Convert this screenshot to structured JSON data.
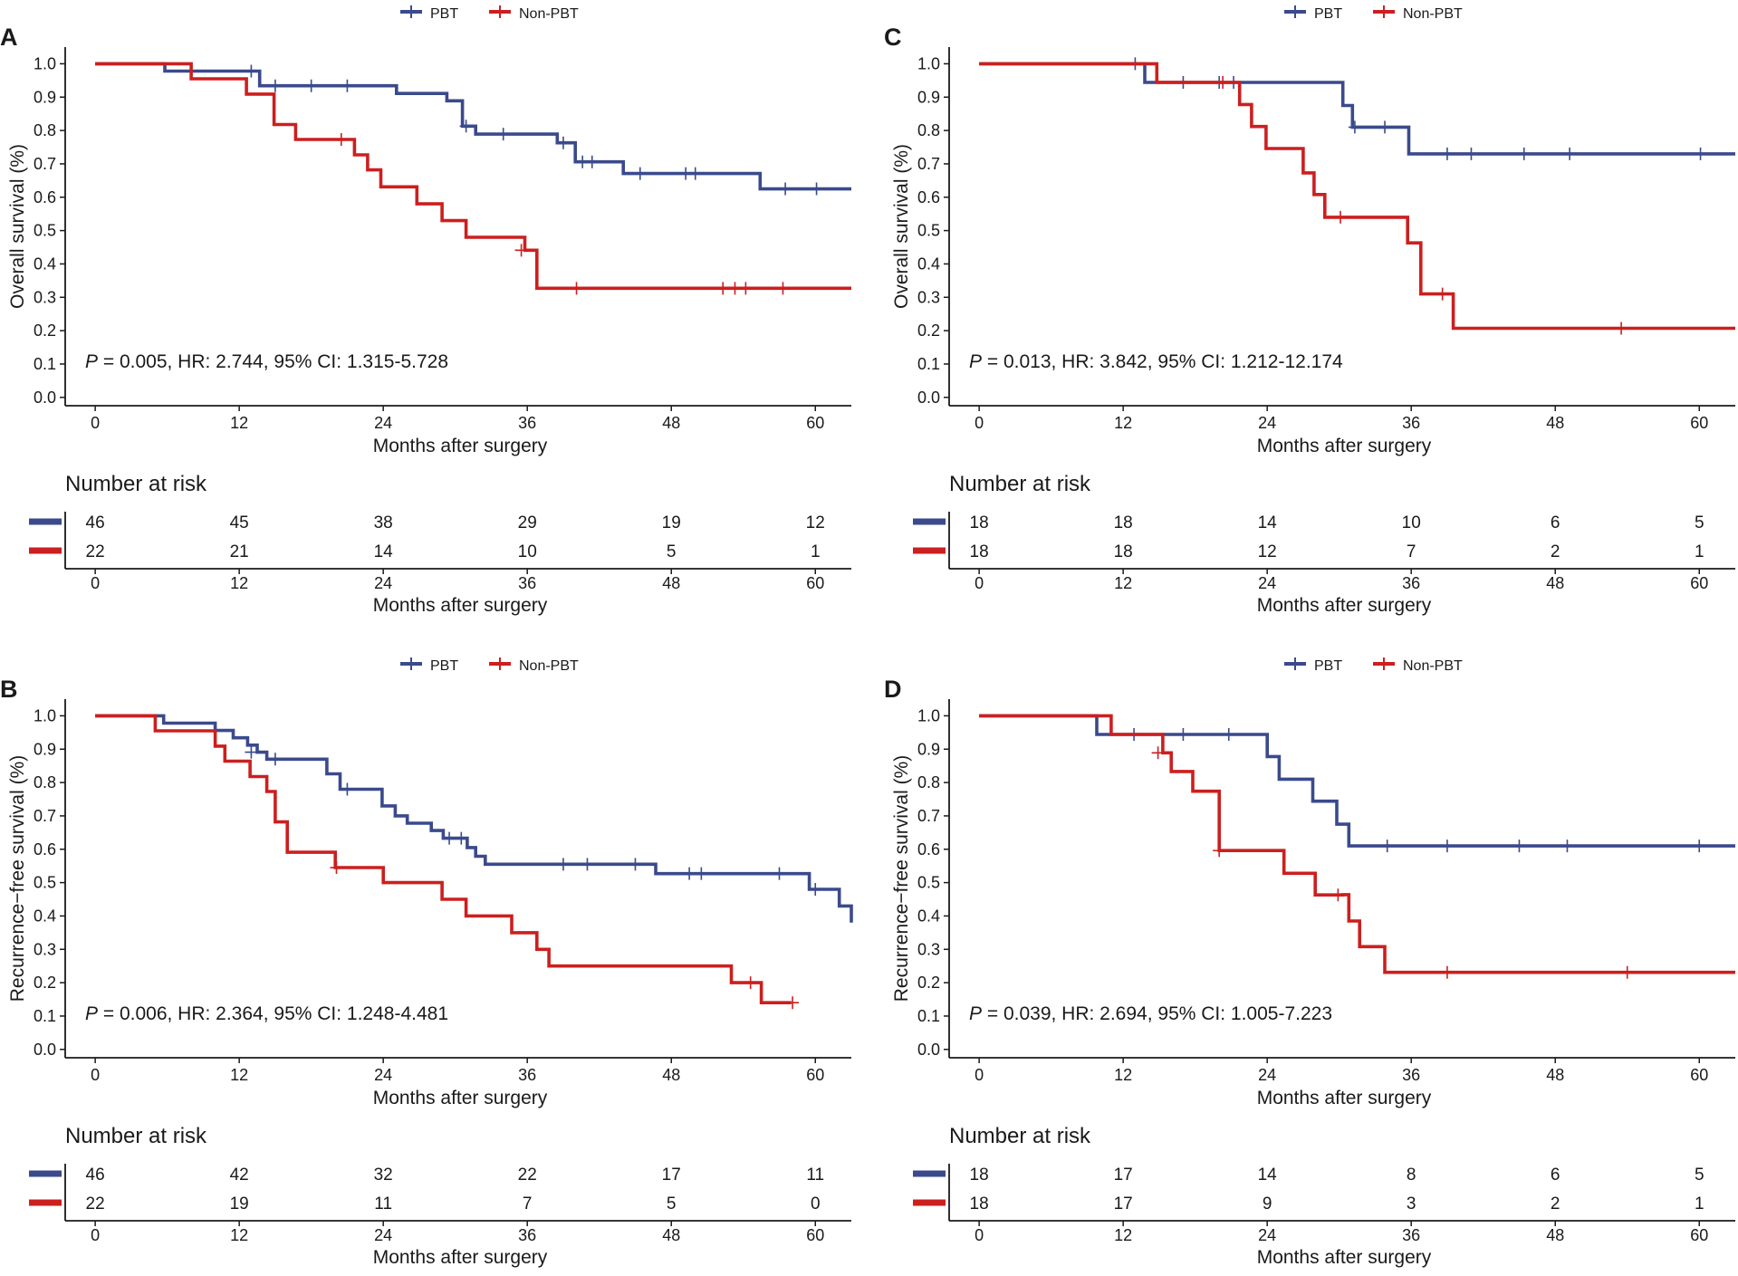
{
  "colors": {
    "pbt": "#3a4a8c",
    "non_pbt": "#cc1f1f",
    "axis": "#1a1a1a"
  },
  "chart_data": [
    {
      "type": "line",
      "panel_label": "A",
      "legend": [
        "PBT",
        "Non-PBT"
      ],
      "ylabel": "Overall survival (%)",
      "xlabel": "Months after surgery",
      "xlim": [
        -2.5,
        63
      ],
      "ylim": [
        -0.025,
        1.05
      ],
      "xticks": [
        0,
        12,
        24,
        36,
        48,
        60
      ],
      "yticks": [
        0.0,
        0.1,
        0.2,
        0.3,
        0.4,
        0.5,
        0.6,
        0.7,
        0.8,
        0.9,
        1.0
      ],
      "annotation": {
        "p_label": "P",
        "text": " = 0.005, HR: 2.744, 95% CI: 1.315-5.728"
      },
      "series": [
        {
          "name": "PBT",
          "steps": [
            [
              0,
              1.0
            ],
            [
              5.8,
              0.978
            ],
            [
              13.7,
              0.934
            ],
            [
              25.1,
              0.911
            ],
            [
              29.3,
              0.889
            ],
            [
              30.6,
              0.813
            ],
            [
              31.7,
              0.789
            ],
            [
              38.5,
              0.763
            ],
            [
              40,
              0.706
            ],
            [
              44,
              0.671
            ],
            [
              55.4,
              0.625
            ],
            [
              63,
              0.625
            ]
          ],
          "censors": [
            [
              13,
              0.978
            ],
            [
              15,
              0.934
            ],
            [
              18,
              0.934
            ],
            [
              21,
              0.934
            ],
            [
              30.9,
              0.813
            ],
            [
              34,
              0.789
            ],
            [
              39,
              0.763
            ],
            [
              40.6,
              0.706
            ],
            [
              41.4,
              0.706
            ],
            [
              45.4,
              0.671
            ],
            [
              49.2,
              0.671
            ],
            [
              50,
              0.671
            ],
            [
              57.5,
              0.625
            ],
            [
              60.1,
              0.625
            ]
          ]
        },
        {
          "name": "Non-PBT",
          "steps": [
            [
              0,
              1.0
            ],
            [
              8,
              0.955
            ],
            [
              12.6,
              0.909
            ],
            [
              14.9,
              0.818
            ],
            [
              16.7,
              0.773
            ],
            [
              21.6,
              0.727
            ],
            [
              22.7,
              0.682
            ],
            [
              23.8,
              0.631
            ],
            [
              26.8,
              0.58
            ],
            [
              28.9,
              0.53
            ],
            [
              30.9,
              0.48
            ],
            [
              35.8,
              0.441
            ],
            [
              36.8,
              0.327
            ],
            [
              63,
              0.327
            ]
          ],
          "censors": [
            [
              20.5,
              0.773
            ],
            [
              35.5,
              0.441
            ],
            [
              40.1,
              0.327
            ],
            [
              52.3,
              0.327
            ],
            [
              53.3,
              0.327
            ],
            [
              54.2,
              0.327
            ],
            [
              57.3,
              0.327
            ]
          ]
        }
      ],
      "risk_table": {
        "title": "Number at risk",
        "times": [
          0,
          12,
          24,
          36,
          48,
          60
        ],
        "rows": [
          {
            "name": "PBT",
            "values": [
              46,
              45,
              38,
              29,
              19,
              12
            ]
          },
          {
            "name": "Non-PBT",
            "values": [
              22,
              21,
              14,
              10,
              5,
              1
            ]
          }
        ],
        "xlabel": "Months after surgery"
      }
    },
    {
      "type": "line",
      "panel_label": "C",
      "legend": [
        "PBT",
        "Non-PBT"
      ],
      "ylabel": "Overall survival (%)",
      "xlabel": "Months after surgery",
      "xlim": [
        -2.5,
        63
      ],
      "ylim": [
        -0.025,
        1.05
      ],
      "xticks": [
        0,
        12,
        24,
        36,
        48,
        60
      ],
      "yticks": [
        0.0,
        0.1,
        0.2,
        0.3,
        0.4,
        0.5,
        0.6,
        0.7,
        0.8,
        0.9,
        1.0
      ],
      "annotation": {
        "p_label": "P",
        "text": " = 0.013, HR: 3.842, 95% CI: 1.212-12.174"
      },
      "series": [
        {
          "name": "PBT",
          "steps": [
            [
              0,
              1.0
            ],
            [
              13.8,
              0.944
            ],
            [
              30.3,
              0.875
            ],
            [
              31.1,
              0.81
            ],
            [
              35.8,
              0.73
            ],
            [
              63,
              0.73
            ]
          ],
          "censors": [
            [
              13,
              1.0
            ],
            [
              17,
              0.944
            ],
            [
              20,
              0.944
            ],
            [
              21.2,
              0.944
            ],
            [
              31.3,
              0.81
            ],
            [
              33.8,
              0.81
            ],
            [
              39,
              0.73
            ],
            [
              41,
              0.73
            ],
            [
              45.4,
              0.73
            ],
            [
              49.2,
              0.73
            ],
            [
              60.1,
              0.73
            ]
          ]
        },
        {
          "name": "Non-PBT",
          "steps": [
            [
              0,
              1.0
            ],
            [
              14.8,
              0.944
            ],
            [
              21.7,
              0.878
            ],
            [
              22.7,
              0.812
            ],
            [
              23.9,
              0.746
            ],
            [
              27,
              0.673
            ],
            [
              27.9,
              0.608
            ],
            [
              28.8,
              0.54
            ],
            [
              35.7,
              0.463
            ],
            [
              36.8,
              0.31
            ],
            [
              39.5,
              0.207
            ],
            [
              63,
              0.207
            ]
          ],
          "censors": [
            [
              20.3,
              0.944
            ],
            [
              30.1,
              0.54
            ],
            [
              38.6,
              0.31
            ],
            [
              53.5,
              0.207
            ]
          ]
        }
      ],
      "risk_table": {
        "title": "Number at risk",
        "times": [
          0,
          12,
          24,
          36,
          48,
          60
        ],
        "rows": [
          {
            "name": "PBT",
            "values": [
              18,
              18,
              14,
              10,
              6,
              5
            ]
          },
          {
            "name": "Non-PBT",
            "values": [
              18,
              18,
              12,
              7,
              2,
              1
            ]
          }
        ],
        "xlabel": "Months after surgery"
      }
    },
    {
      "type": "line",
      "panel_label": "B",
      "legend": [
        "PBT",
        "Non-PBT"
      ],
      "ylabel": "Recurrence−free survival (%)",
      "xlabel": "Months after surgery",
      "xlim": [
        -2.5,
        63
      ],
      "ylim": [
        -0.025,
        1.05
      ],
      "xticks": [
        0,
        12,
        24,
        36,
        48,
        60
      ],
      "yticks": [
        0.0,
        0.1,
        0.2,
        0.3,
        0.4,
        0.5,
        0.6,
        0.7,
        0.8,
        0.9,
        1.0
      ],
      "annotation": {
        "p_label": "P",
        "text": " = 0.006, HR: 2.364, 95% CI: 1.248-4.481"
      },
      "series": [
        {
          "name": "PBT",
          "steps": [
            [
              0,
              1.0
            ],
            [
              5.7,
              0.978
            ],
            [
              10,
              0.956
            ],
            [
              11.5,
              0.934
            ],
            [
              12.7,
              0.912
            ],
            [
              13.5,
              0.891
            ],
            [
              14.3,
              0.87
            ],
            [
              19.3,
              0.826
            ],
            [
              20.4,
              0.78
            ],
            [
              23.9,
              0.73
            ],
            [
              25,
              0.7
            ],
            [
              26,
              0.678
            ],
            [
              28,
              0.656
            ],
            [
              29,
              0.633
            ],
            [
              31,
              0.605
            ],
            [
              31.7,
              0.579
            ],
            [
              32.5,
              0.555
            ],
            [
              46.7,
              0.527
            ],
            [
              59.5,
              0.48
            ],
            [
              62,
              0.43
            ],
            [
              63,
              0.38
            ]
          ],
          "censors": [
            [
              13,
              0.891
            ],
            [
              15,
              0.87
            ],
            [
              21,
              0.78
            ],
            [
              29.5,
              0.633
            ],
            [
              30.5,
              0.633
            ],
            [
              39,
              0.555
            ],
            [
              41,
              0.555
            ],
            [
              45,
              0.555
            ],
            [
              49.5,
              0.527
            ],
            [
              50.5,
              0.527
            ],
            [
              57,
              0.527
            ],
            [
              60,
              0.48
            ]
          ]
        },
        {
          "name": "Non-PBT",
          "steps": [
            [
              0,
              1.0
            ],
            [
              5,
              0.955
            ],
            [
              10,
              0.909
            ],
            [
              10.8,
              0.864
            ],
            [
              12.9,
              0.818
            ],
            [
              14.3,
              0.773
            ],
            [
              15,
              0.682
            ],
            [
              16,
              0.591
            ],
            [
              20,
              0.545
            ],
            [
              24,
              0.5
            ],
            [
              28.9,
              0.45
            ],
            [
              30.9,
              0.4
            ],
            [
              34.7,
              0.35
            ],
            [
              36.8,
              0.3
            ],
            [
              37.8,
              0.25
            ],
            [
              53,
              0.2
            ],
            [
              55.5,
              0.14
            ],
            [
              58,
              0.14
            ]
          ],
          "censors": [
            [
              20.1,
              0.545
            ],
            [
              54.6,
              0.2
            ],
            [
              58.1,
              0.14
            ]
          ]
        }
      ],
      "risk_table": {
        "title": "Number at risk",
        "times": [
          0,
          12,
          24,
          36,
          48,
          60
        ],
        "rows": [
          {
            "name": "PBT",
            "values": [
              46,
              42,
              32,
              22,
              17,
              11
            ]
          },
          {
            "name": "Non-PBT",
            "values": [
              22,
              19,
              11,
              7,
              5,
              0
            ]
          }
        ],
        "xlabel": "Months after surgery"
      }
    },
    {
      "type": "line",
      "panel_label": "D",
      "legend": [
        "PBT",
        "Non-PBT"
      ],
      "ylabel": "Recurrence−free survival (%)",
      "xlabel": "Months after surgery",
      "xlim": [
        -2.5,
        63
      ],
      "ylim": [
        -0.025,
        1.05
      ],
      "xticks": [
        0,
        12,
        24,
        36,
        48,
        60
      ],
      "yticks": [
        0.0,
        0.1,
        0.2,
        0.3,
        0.4,
        0.5,
        0.6,
        0.7,
        0.8,
        0.9,
        1.0
      ],
      "annotation": {
        "p_label": "P",
        "text": " = 0.039, HR: 2.694, 95% CI: 1.005-7.223"
      },
      "series": [
        {
          "name": "PBT",
          "steps": [
            [
              0,
              1.0
            ],
            [
              9.8,
              0.944
            ],
            [
              24,
              0.878
            ],
            [
              25,
              0.81
            ],
            [
              27.8,
              0.744
            ],
            [
              29.8,
              0.675
            ],
            [
              30.8,
              0.61
            ],
            [
              63,
              0.61
            ]
          ],
          "censors": [
            [
              12.9,
              0.944
            ],
            [
              17,
              0.944
            ],
            [
              20.8,
              0.944
            ],
            [
              34,
              0.61
            ],
            [
              39,
              0.61
            ],
            [
              45,
              0.61
            ],
            [
              49,
              0.61
            ],
            [
              60,
              0.61
            ]
          ]
        },
        {
          "name": "Non-PBT",
          "steps": [
            [
              0,
              1.0
            ],
            [
              11,
              0.944
            ],
            [
              15.3,
              0.889
            ],
            [
              16,
              0.833
            ],
            [
              17.8,
              0.774
            ],
            [
              20,
              0.596
            ],
            [
              25.4,
              0.528
            ],
            [
              28,
              0.463
            ],
            [
              30.3,
              0.464
            ],
            [
              30.8,
              0.385
            ],
            [
              31.7,
              0.308
            ],
            [
              33.8,
              0.231
            ],
            [
              63,
              0.231
            ]
          ],
          "censors": [
            [
              14.9,
              0.889
            ],
            [
              20,
              0.596
            ],
            [
              29.9,
              0.463
            ],
            [
              39,
              0.231
            ],
            [
              54,
              0.231
            ]
          ]
        }
      ],
      "risk_table": {
        "title": "Number at risk",
        "times": [
          0,
          12,
          24,
          36,
          48,
          60
        ],
        "rows": [
          {
            "name": "PBT",
            "values": [
              18,
              17,
              14,
              8,
              6,
              5
            ]
          },
          {
            "name": "Non-PBT",
            "values": [
              18,
              17,
              9,
              3,
              2,
              1
            ]
          }
        ],
        "xlabel": "Months after surgery"
      }
    }
  ]
}
